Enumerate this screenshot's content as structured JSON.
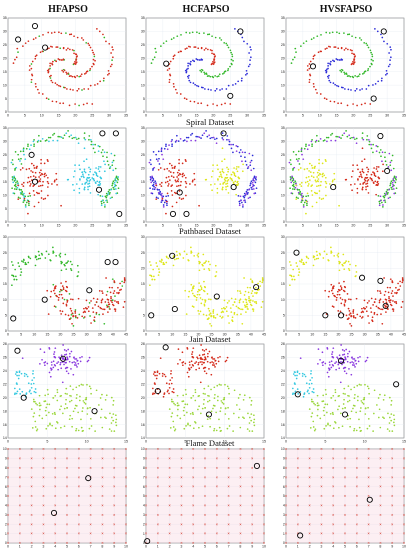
{
  "chart_data": {
    "type": "scatter",
    "column_titles": [
      "HFAPSO",
      "HCFAPSO",
      "HVSFAPSO"
    ],
    "rows": [
      {
        "label": "Spiral Dataset",
        "xlim": [
          0,
          35
        ],
        "ylim": [
          0,
          35
        ],
        "xticks": [
          0,
          5,
          10,
          15,
          20,
          25,
          30,
          35
        ],
        "yticks": [
          0,
          5,
          10,
          15,
          20,
          25,
          30,
          35
        ]
      },
      {
        "label": "Pathbased Dataset",
        "xlim": [
          0,
          35
        ],
        "ylim": [
          0,
          35
        ],
        "xticks": [
          0,
          5,
          10,
          15,
          20,
          25,
          30,
          35
        ],
        "yticks": [
          0,
          5,
          10,
          15,
          20,
          25,
          30,
          35
        ]
      },
      {
        "label": "Jain Dataset",
        "xlim": [
          0,
          45
        ],
        "ylim": [
          0,
          30
        ],
        "xticks": [
          0,
          5,
          10,
          15,
          20,
          25,
          30,
          35,
          40,
          45
        ],
        "yticks": [
          0,
          5,
          10,
          15,
          20,
          25,
          30
        ]
      },
      {
        "label": "Flame Dataset",
        "xlim": [
          0,
          15
        ],
        "ylim": [
          14,
          28
        ],
        "xticks": [
          0,
          5,
          10,
          15
        ],
        "yticks": [
          14,
          16,
          18,
          20,
          22,
          24,
          26,
          28
        ]
      },
      {
        "label": "",
        "xlim": [
          0,
          10
        ],
        "ylim": [
          0,
          10
        ],
        "xticks": [
          0,
          1,
          2,
          3,
          4,
          5,
          6,
          7,
          8,
          9,
          10
        ],
        "yticks": [
          0,
          1,
          2,
          3,
          4,
          5,
          6,
          7,
          8,
          9,
          10
        ]
      }
    ],
    "panels": [
      {
        "row": 0,
        "col": 0,
        "dataset": "spiral",
        "scheme": "spiral-mono",
        "centers": [
          [
            3,
            27
          ],
          [
            8,
            32
          ],
          [
            11,
            24
          ]
        ]
      },
      {
        "row": 0,
        "col": 1,
        "dataset": "spiral",
        "scheme": "spiral-3",
        "centers": [
          [
            28,
            30
          ],
          [
            6,
            18
          ],
          [
            25,
            6
          ]
        ]
      },
      {
        "row": 0,
        "col": 2,
        "dataset": "spiral",
        "scheme": "spiral-3",
        "centers": [
          [
            29,
            30
          ],
          [
            8,
            17
          ],
          [
            26,
            5
          ]
        ]
      },
      {
        "row": 1,
        "col": 0,
        "dataset": "pathbased",
        "scheme": "path-A",
        "centers": [
          [
            28,
            33
          ],
          [
            32,
            33
          ],
          [
            7,
            25
          ],
          [
            8,
            15
          ],
          [
            27,
            12
          ],
          [
            33,
            3
          ]
        ]
      },
      {
        "row": 1,
        "col": 1,
        "dataset": "pathbased",
        "scheme": "path-B",
        "centers": [
          [
            23,
            33
          ],
          [
            10,
            11
          ],
          [
            26,
            13
          ],
          [
            8,
            3
          ],
          [
            12,
            3
          ]
        ]
      },
      {
        "row": 1,
        "col": 2,
        "dataset": "pathbased",
        "scheme": "path-C",
        "centers": [
          [
            28,
            32
          ],
          [
            30,
            19
          ],
          [
            14,
            13
          ]
        ]
      },
      {
        "row": 2,
        "col": 0,
        "dataset": "jain",
        "scheme": "jain-A",
        "centers": [
          [
            38,
            22
          ],
          [
            41,
            22
          ],
          [
            31,
            13
          ],
          [
            14,
            10
          ],
          [
            2,
            4
          ]
        ]
      },
      {
        "row": 2,
        "col": 1,
        "dataset": "jain",
        "scheme": "jain-B",
        "centers": [
          [
            10,
            24
          ],
          [
            27,
            11
          ],
          [
            42,
            14
          ],
          [
            11,
            7
          ],
          [
            2,
            5
          ]
        ]
      },
      {
        "row": 2,
        "col": 2,
        "dataset": "jain",
        "scheme": "jain-C",
        "centers": [
          [
            4,
            25
          ],
          [
            29,
            17
          ],
          [
            36,
            16
          ],
          [
            15,
            5
          ],
          [
            21,
            5
          ],
          [
            38,
            8
          ]
        ]
      },
      {
        "row": 3,
        "col": 0,
        "dataset": "flame",
        "scheme": "flame-4",
        "centers": [
          [
            1.2,
            27
          ],
          [
            7,
            25.8
          ],
          [
            2,
            20
          ],
          [
            11,
            18
          ]
        ]
      },
      {
        "row": 3,
        "col": 1,
        "dataset": "flame",
        "scheme": "flame-2",
        "centers": [
          [
            2.5,
            27.5
          ],
          [
            1.5,
            21
          ],
          [
            8,
            17.5
          ]
        ]
      },
      {
        "row": 3,
        "col": 2,
        "dataset": "flame",
        "scheme": "flame-4",
        "centers": [
          [
            7,
            25.5
          ],
          [
            14,
            22
          ],
          [
            1.5,
            20.5
          ],
          [
            7.5,
            17.5
          ]
        ]
      },
      {
        "row": 4,
        "col": 0,
        "dataset": "grid",
        "scheme": "grid",
        "centers": [
          [
            6.8,
            6.9
          ],
          [
            3.9,
            3.2
          ]
        ]
      },
      {
        "row": 4,
        "col": 1,
        "dataset": "grid",
        "scheme": "grid",
        "centers": [
          [
            9.4,
            8.2
          ],
          [
            0.1,
            0.2
          ]
        ]
      },
      {
        "row": 4,
        "col": 2,
        "dataset": "grid",
        "scheme": "grid",
        "centers": [
          [
            7.1,
            4.6
          ],
          [
            1.2,
            0.8
          ]
        ]
      }
    ],
    "colors": {
      "red": "#d42a1a",
      "blue": "#2c2cd8",
      "green": "#33b82a",
      "cyan": "#33c8e0",
      "yellow": "#dde61a",
      "lime": "#9ad63a",
      "purple": "#8a3adf",
      "pink_fill": "#f6d2dc",
      "center": "#000000"
    }
  }
}
